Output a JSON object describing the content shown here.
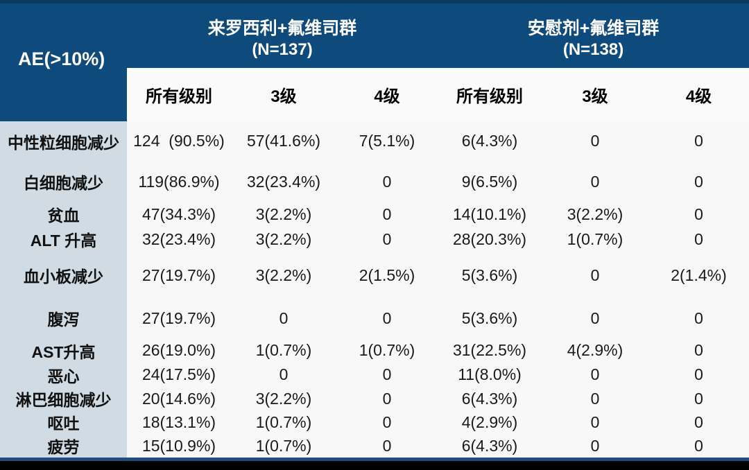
{
  "chart_data": {
    "type": "table",
    "corner_label": "AE(>10%)",
    "col_groups": [
      {
        "title": "来罗西利+氟维司群",
        "n_label": "(N=137)",
        "n": 137
      },
      {
        "title": "安慰剂+氟维司群",
        "n_label": "(N=138)",
        "n": 138
      }
    ],
    "sub_columns": [
      "所有级别",
      "3级",
      "4级",
      "所有级别",
      "3级",
      "4级"
    ],
    "rows": [
      {
        "label": "中性粒细胞减少",
        "values": [
          "124  (90.5%)",
          "57(41.6%)",
          "7(5.1%)",
          "6(4.3%)",
          "0",
          "0"
        ]
      },
      {
        "label": "白细胞减少",
        "values": [
          "119(86.9%)",
          "32(23.4%)",
          "0",
          "9(6.5%)",
          "0",
          "0"
        ]
      },
      {
        "label": "贫血",
        "values": [
          "47(34.3%)",
          "3(2.2%)",
          "0",
          "14(10.1%)",
          "3(2.2%)",
          "0"
        ]
      },
      {
        "label": "ALT 升高",
        "values": [
          "32(23.4%)",
          "3(2.2%)",
          "0",
          "28(20.3%)",
          "1(0.7%)",
          "0"
        ]
      },
      {
        "label": "血小板减少",
        "values": [
          "27(19.7%)",
          "3(2.2%)",
          "2(1.5%)",
          "5(3.6%)",
          "0",
          "2(1.4%)"
        ]
      },
      {
        "label": "腹泻",
        "values": [
          "27(19.7%)",
          "0",
          "0",
          "5(3.6%)",
          "0",
          "0"
        ]
      },
      {
        "label": "AST升高",
        "values": [
          "26(19.0%)",
          "1(0.7%)",
          "1(0.7%)",
          "31(22.5%)",
          "4(2.9%)",
          "0"
        ]
      },
      {
        "label": "恶心",
        "values": [
          "24(17.5%)",
          "0",
          "0",
          "11(8.0%)",
          "0",
          "0"
        ]
      },
      {
        "label": "淋巴细胞减少",
        "values": [
          "20(14.6%)",
          "3(2.2%)",
          "0",
          "6(4.3%)",
          "0",
          "0"
        ]
      },
      {
        "label": "呕吐",
        "values": [
          "18(13.1%)",
          "1(0.7%)",
          "0",
          "4(2.9%)",
          "0",
          "0"
        ]
      },
      {
        "label": "疲劳",
        "values": [
          "15(10.9%)",
          "1(0.7%)",
          "0",
          "6(4.3%)",
          "0",
          "0"
        ]
      }
    ]
  },
  "colors": {
    "header_blue": "#0F4A7D",
    "top_strip": "#0A3A5F",
    "label_column_bg": "#D0DBE4",
    "data_bg": "#F8F8F8",
    "subheader_bg": "#FAFAFA",
    "bottom_line_blue": "#1E4E7F",
    "bottom_band_black": "#000000",
    "header_text": "#FFFFFF",
    "body_text": "#1A1A1A"
  }
}
